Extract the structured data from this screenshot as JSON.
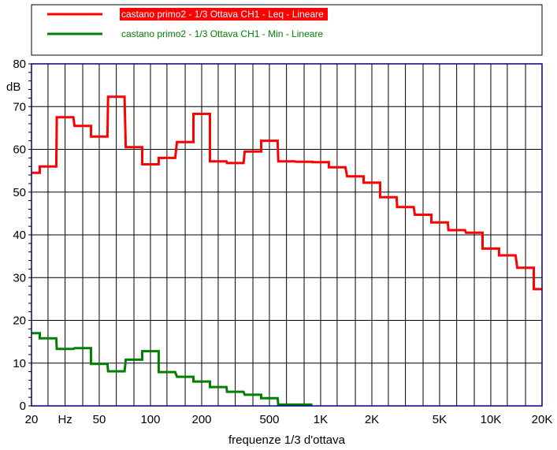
{
  "chart_data": {
    "type": "line",
    "step": true,
    "title": "",
    "xlabel": "frequenze 1/3 d'ottava",
    "ylabel": "dB",
    "xscale": "log",
    "xlim": [
      20,
      20000
    ],
    "ylim": [
      0,
      80
    ],
    "grid": true,
    "legend_position": "top",
    "x_tick_labels": [
      {
        "value": 20,
        "label": "20"
      },
      {
        "value": 31.5,
        "label": "Hz"
      },
      {
        "value": 50,
        "label": "50"
      },
      {
        "value": 100,
        "label": "100"
      },
      {
        "value": 200,
        "label": "200"
      },
      {
        "value": 500,
        "label": "500"
      },
      {
        "value": 1000,
        "label": "1K"
      },
      {
        "value": 2000,
        "label": "2K"
      },
      {
        "value": 5000,
        "label": "5K"
      },
      {
        "value": 10000,
        "label": "10K"
      },
      {
        "value": 20000,
        "label": "20K"
      }
    ],
    "y_ticks": [
      0,
      10,
      20,
      30,
      40,
      50,
      60,
      70,
      80
    ],
    "x": [
      20,
      25,
      31.5,
      40,
      50,
      63,
      80,
      100,
      125,
      160,
      200,
      250,
      315,
      400,
      500,
      630,
      800,
      1000,
      1250,
      1600,
      2000,
      2500,
      3150,
      4000,
      5000,
      6300,
      8000,
      10000,
      12500,
      16000,
      20000
    ],
    "series": [
      {
        "name": "castano primo2 - 1/3 Ottava CH1 - Leq - Lineare",
        "color": "#ff0000",
        "highlighted": true,
        "values": [
          54.5,
          56,
          67.5,
          65.5,
          63,
          72.3,
          60.5,
          56.5,
          58,
          61.7,
          68.3,
          57.2,
          56.8,
          59.5,
          62,
          57.2,
          57.1,
          57.0,
          55.8,
          53.7,
          52.2,
          48.8,
          46.5,
          44.7,
          42.9,
          41.1,
          40.5,
          36.8,
          35.2,
          32.3,
          27.3
        ]
      },
      {
        "name": "castano primo2 - 1/3 Ottava CH1 - Min - Lineare",
        "color": "#008000",
        "highlighted": false,
        "values": [
          17,
          15.8,
          13.3,
          13.5,
          9.8,
          8.1,
          10.8,
          12.8,
          7.9,
          6.8,
          5.7,
          4.4,
          3.3,
          2.6,
          1.8,
          0.3,
          0.3,
          null,
          null,
          null,
          null,
          null,
          null,
          null,
          null,
          null,
          null,
          null,
          null,
          null,
          null
        ]
      }
    ]
  }
}
